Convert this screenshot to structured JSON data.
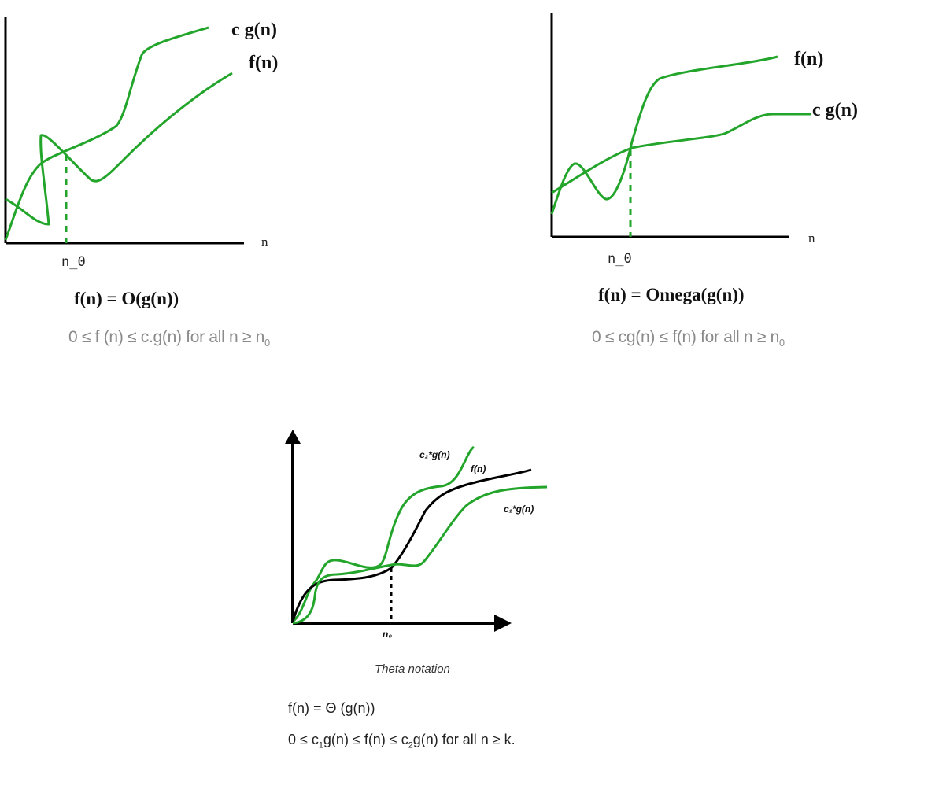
{
  "colors": {
    "green": "#22a52a",
    "black": "#000000",
    "formula_gray": "#8a8a8a"
  },
  "big_o": {
    "label_cg": "c g(n)",
    "label_f": "f(n)",
    "x_axis": "n",
    "n0": "n_0",
    "title": "f(n) = O(g(n))",
    "formula": {
      "pre": "0 ≤ f (n) ≤ c.g(n) for all n ≥ n",
      "sub": "0"
    }
  },
  "omega": {
    "label_f": "f(n)",
    "label_cg": "c g(n)",
    "x_axis": "n",
    "n0": "n_0",
    "title": "f(n) = Omega(g(n))",
    "formula": {
      "pre": "0 ≤ cg(n) ≤ f(n) for all n ≥ n",
      "sub": "0"
    }
  },
  "theta": {
    "label_c2g": "c₂*g(n)",
    "label_f": "f(n)",
    "label_c1g": "c₁*g(n)",
    "n0": "n₀",
    "caption": "Theta notation",
    "definition": "f(n) = Θ (g(n))",
    "inequality": {
      "p1": "0 ≤ c",
      "s1": "1",
      "p2": "g(n) ≤ f(n) ≤ c",
      "s2": "2",
      "p3": "g(n) for all n ≥ k."
    }
  }
}
